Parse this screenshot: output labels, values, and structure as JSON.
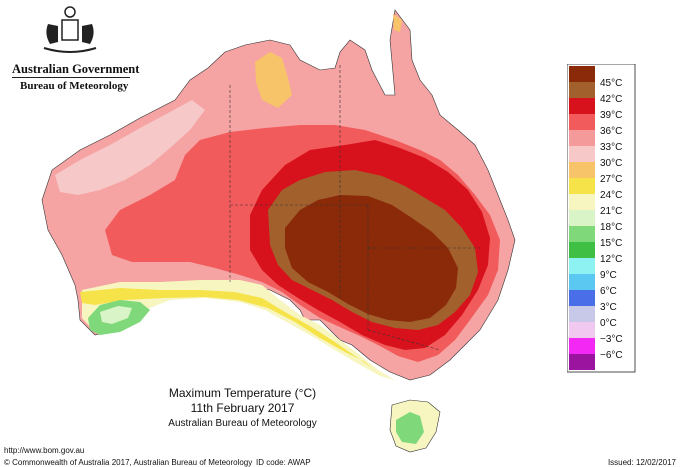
{
  "header": {
    "government": "Australian Government",
    "bureau": "Bureau of Meteorology"
  },
  "map": {
    "title": "Maximum Temperature (°C)",
    "date": "11th February 2017",
    "source": "Australian Bureau of Meteorology",
    "regions": "Australia and Tasmania",
    "zones": [
      {
        "name": "outer",
        "color": "#f5a3a3"
      },
      {
        "name": "coastal-west",
        "color": "#f7c8c8"
      },
      {
        "name": "hot-36",
        "color": "#f25b5b"
      },
      {
        "name": "hot-39",
        "color": "#d8121c"
      },
      {
        "name": "hot-42",
        "color": "#a2602c"
      },
      {
        "name": "hot-45",
        "color": "#8a2a08"
      },
      {
        "name": "south-west-cool",
        "color": "#7fd87a"
      },
      {
        "name": "south-yellow",
        "color": "#f6e34a"
      },
      {
        "name": "south-pale",
        "color": "#f7f5c0"
      },
      {
        "name": "kimberley-orange",
        "color": "#f7c46a"
      }
    ]
  },
  "legend": {
    "entries": [
      {
        "label": "45°C",
        "color": "#8a2a08"
      },
      {
        "label": "42°C",
        "color": "#a2602c"
      },
      {
        "label": "39°C",
        "color": "#d8121c"
      },
      {
        "label": "36°C",
        "color": "#f25b5b"
      },
      {
        "label": "33°C",
        "color": "#f59a9a"
      },
      {
        "label": "30°C",
        "color": "#f7c8c8"
      },
      {
        "label": "27°C",
        "color": "#f7c46a"
      },
      {
        "label": "24°C",
        "color": "#f6e34a"
      },
      {
        "label": "21°C",
        "color": "#f7f5c0"
      },
      {
        "label": "18°C",
        "color": "#d9f5c8"
      },
      {
        "label": "15°C",
        "color": "#7fd87a"
      },
      {
        "label": "12°C",
        "color": "#3fbf44"
      },
      {
        "label": "9°C",
        "color": "#8ef2f2"
      },
      {
        "label": "6°C",
        "color": "#5ac8f0"
      },
      {
        "label": "3°C",
        "color": "#4a6ee8"
      },
      {
        "label": "0°C",
        "color": "#c8c8e8"
      },
      {
        "label": "−3°C",
        "color": "#f0c8f0"
      },
      {
        "label": "−6°C",
        "color": "#f428f4"
      },
      {
        "label": "",
        "color": "#9a14a0"
      }
    ]
  },
  "footer": {
    "url": "http://www.bom.gov.au",
    "copyright": "© Commonwealth of Australia 2017, Australian Bureau of Meteorology",
    "id_code": "ID code: AWAP",
    "issued": "Issued: 12/02/2017"
  }
}
